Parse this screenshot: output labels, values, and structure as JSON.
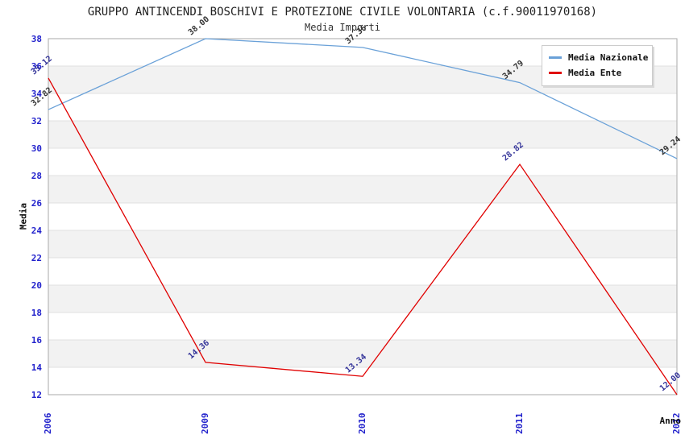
{
  "chart_data": {
    "type": "line",
    "title": "GRUPPO ANTINCENDI BOSCHIVI E PROTEZIONE CIVILE VOLONTARIA (c.f.90011970168)",
    "subtitle": "Media Importi",
    "xlabel": "Anno",
    "ylabel": "Media",
    "categories": [
      "2006",
      "2009",
      "2010",
      "2011",
      "2012"
    ],
    "series": [
      {
        "name": "Media Nazionale",
        "color": "#6aa1d8",
        "label_color": "#333333",
        "values": [
          32.82,
          38.0,
          37.36,
          34.79,
          29.24
        ],
        "labels": [
          "32.82",
          "38.00",
          "37.36",
          "34.79",
          "29.24"
        ]
      },
      {
        "name": "Media Ente",
        "color": "#e00000",
        "label_color": "#333399",
        "values": [
          35.12,
          14.36,
          13.34,
          28.82,
          12.0
        ],
        "labels": [
          "35.12",
          "14.36",
          "13.34",
          "28.82",
          "12.00"
        ]
      }
    ],
    "ylim": [
      12,
      38
    ],
    "ytick_step": 2,
    "grid": true,
    "legend_position": "top-right",
    "band_colors": [
      "#ffffff",
      "#f2f2f2"
    ],
    "grid_color": "#e0e0e0",
    "plot_border_color": "#aaaaaa",
    "tick_label_color": "#2222cc"
  }
}
